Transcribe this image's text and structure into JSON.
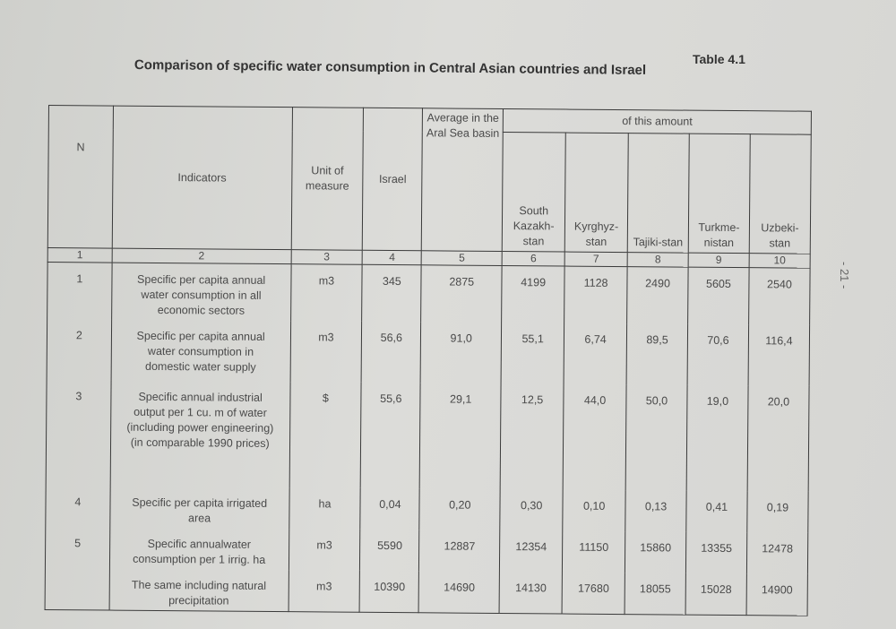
{
  "header": {
    "table_label": "Table 4.1",
    "title": "Comparison of specific water consumption in Central Asian countries and Israel"
  },
  "page_number": "- 21 -",
  "table": {
    "columns": {
      "n": "N",
      "indicators": "Indicators",
      "unit": "Unit of measure",
      "israel": "Israel",
      "average": "Average in the Aral Sea basin",
      "group": "of this amount",
      "countries": [
        "South Kazakh-stan",
        "Kyrghyz-stan",
        "Tajiki-stan",
        "Turkme-nistan",
        "Uzbeki-stan"
      ]
    },
    "column_numbers": [
      1,
      2,
      3,
      4,
      5,
      6,
      7,
      8,
      9,
      10
    ],
    "rows": [
      {
        "n": "1",
        "indicator": "Specific per capita annual water consumption in all economic sectors",
        "unit": "m3",
        "values": [
          "345",
          "2875",
          "4199",
          "1128",
          "2490",
          "5605",
          "2540"
        ]
      },
      {
        "n": "2",
        "indicator": "Specific per capita annual water consumption in domestic water supply",
        "unit": "m3",
        "values": [
          "56,6",
          "91,0",
          "55,1",
          "6,74",
          "89,5",
          "70,6",
          "116,4"
        ]
      },
      {
        "n": "3",
        "indicator": "Specific annual industrial output per 1 cu. m of water (including power engineering) (in comparable 1990 prices)",
        "unit": "$",
        "values": [
          "55,6",
          "29,1",
          "12,5",
          "44,0",
          "50,0",
          "19,0",
          "20,0"
        ]
      },
      {
        "n": "4",
        "indicator": "Specific per capita irrigated area",
        "unit": "ha",
        "values": [
          "0,04",
          "0,20",
          "0,30",
          "0,10",
          "0,13",
          "0,41",
          "0,19"
        ]
      },
      {
        "n": "5",
        "indicator": "Specific annualwater consumption per 1 irrig. ha",
        "unit": "m3",
        "values": [
          "5590",
          "12887",
          "12354",
          "11150",
          "15860",
          "13355",
          "12478"
        ]
      },
      {
        "indicator": "The same including natural precipitation",
        "unit": "m3",
        "values": [
          "10390",
          "14690",
          "14130",
          "17680",
          "18055",
          "15028",
          "14900"
        ]
      }
    ]
  }
}
